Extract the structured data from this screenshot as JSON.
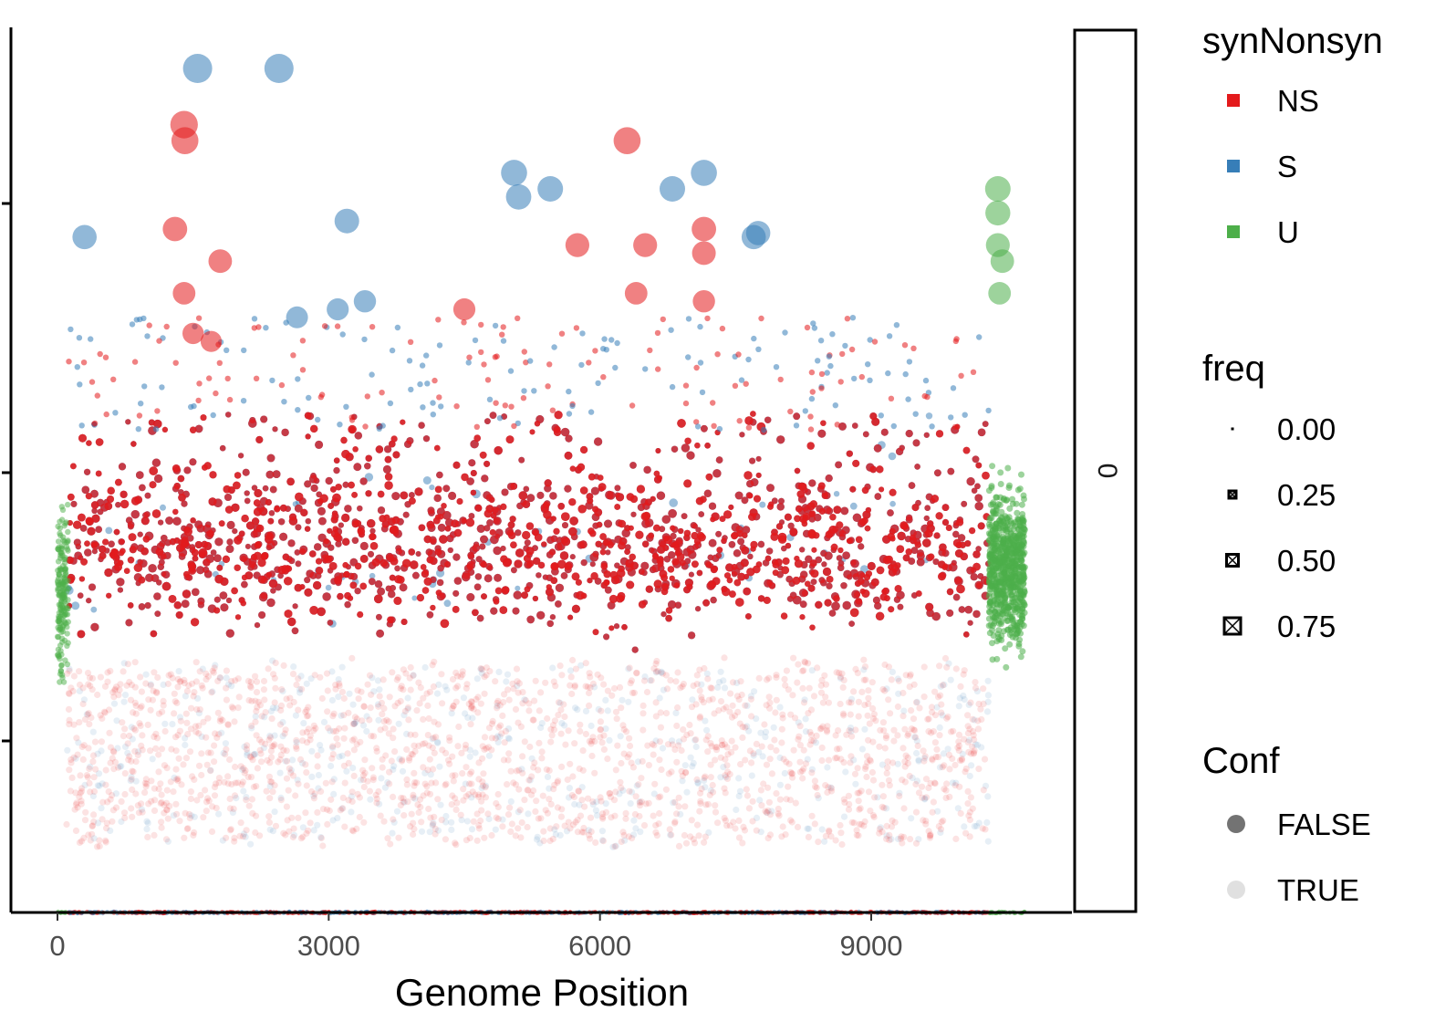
{
  "chart_data": {
    "type": "scatter",
    "title": "",
    "xlabel": "Genome Position",
    "ylabel": "",
    "x_ticks": [
      "0",
      "3000",
      "6000",
      "9000"
    ],
    "xlim": [
      -530,
      11150
    ],
    "facet_strip_label": "0",
    "grid": false,
    "legend_position": "right",
    "legends": [
      {
        "title": "synNonsyn",
        "items": [
          {
            "label": "NS",
            "color": "#E41A1C"
          },
          {
            "label": "S",
            "color": "#377EB8"
          },
          {
            "label": "U",
            "color": "#4DAF4A"
          }
        ]
      },
      {
        "title": "freq",
        "items": [
          {
            "label": "0.00",
            "value": 0.0
          },
          {
            "label": "0.25",
            "value": 0.25
          },
          {
            "label": "0.50",
            "value": 0.5
          },
          {
            "label": "0.75",
            "value": 0.75
          }
        ]
      },
      {
        "title": "Conf",
        "items": [
          {
            "label": "FALSE",
            "alpha": 0.55
          },
          {
            "label": "TRUE",
            "alpha": 0.12
          }
        ]
      }
    ],
    "series": [
      {
        "name": "NS",
        "note_points": "prominent outliers (bulk of many thousands of points spans x 0–10300)",
        "points": [
          [
            1400,
            0.93
          ],
          [
            1410,
            0.91
          ],
          [
            6300,
            0.91
          ],
          [
            1300,
            0.8
          ],
          [
            1800,
            0.76
          ],
          [
            7150,
            0.8
          ],
          [
            7150,
            0.77
          ],
          [
            5750,
            0.78
          ],
          [
            6500,
            0.78
          ],
          [
            1400,
            0.72
          ],
          [
            6400,
            0.72
          ],
          [
            7150,
            0.71
          ],
          [
            4500,
            0.7
          ],
          [
            1500,
            0.67
          ],
          [
            1700,
            0.66
          ]
        ]
      },
      {
        "name": "S",
        "note_points": "prominent outliers",
        "points": [
          [
            1550,
            1.0
          ],
          [
            2450,
            1.0
          ],
          [
            5050,
            0.87
          ],
          [
            5100,
            0.84
          ],
          [
            5450,
            0.85
          ],
          [
            6800,
            0.85
          ],
          [
            7150,
            0.87
          ],
          [
            300,
            0.79
          ],
          [
            3200,
            0.81
          ],
          [
            7700,
            0.79
          ],
          [
            7750,
            0.795
          ],
          [
            3100,
            0.7
          ],
          [
            3400,
            0.71
          ],
          [
            2650,
            0.69
          ]
        ]
      },
      {
        "name": "U",
        "note_points": "points cluster at both genome ends (x 0–120 and x 10300–10700)",
        "points": [
          [
            10400,
            0.85
          ],
          [
            10400,
            0.82
          ],
          [
            10400,
            0.78
          ],
          [
            10450,
            0.76
          ],
          [
            10420,
            0.72
          ]
        ]
      }
    ]
  }
}
